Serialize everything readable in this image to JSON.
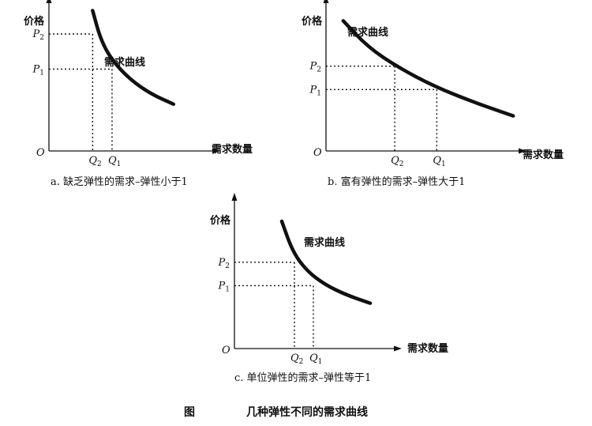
{
  "figure": {
    "label": "图",
    "title": "几种弹性不同的需求曲线"
  },
  "chart_data": [
    {
      "type": "line",
      "panel": "a",
      "caption": "a. 缺乏弹性的需求–弹性小于1",
      "ylabel": "价格",
      "xlabel": "需求数量",
      "origin": "O",
      "curve_label": "需求曲线",
      "ticks": {
        "p_high": "P2",
        "p_low": "P1",
        "q_low": "Q2",
        "q_high": "Q1"
      },
      "xlim": [
        0,
        10
      ],
      "ylim": [
        0,
        10
      ],
      "curve": [
        [
          2.7,
          9.6
        ],
        [
          3.2,
          7.6
        ],
        [
          3.9,
          6.2
        ],
        [
          5.0,
          4.9
        ],
        [
          6.3,
          3.9
        ],
        [
          7.7,
          3.2
        ]
      ],
      "points": [
        {
          "p": "P2",
          "q": "Q2",
          "x": 2.7,
          "y": 8.0
        },
        {
          "p": "P1",
          "q": "Q1",
          "x": 3.9,
          "y": 5.6
        }
      ]
    },
    {
      "type": "line",
      "panel": "b",
      "caption": "b. 富有弹性的需求–弹性大于1",
      "ylabel": "价格",
      "xlabel": "需求数量",
      "origin": "O",
      "curve_label": "需求曲线",
      "ticks": {
        "p_high": "P2",
        "p_low": "P1",
        "q_low": "Q2",
        "q_high": "Q1"
      },
      "xlim": [
        0,
        10
      ],
      "ylim": [
        0,
        10
      ],
      "curve": [
        [
          0.9,
          8.9
        ],
        [
          2.2,
          7.1
        ],
        [
          3.8,
          5.7
        ],
        [
          5.7,
          4.4
        ],
        [
          7.8,
          3.3
        ],
        [
          9.8,
          2.4
        ]
      ],
      "points": [
        {
          "p": "P2",
          "q": "Q2",
          "x": 3.6,
          "y": 5.8
        },
        {
          "p": "P1",
          "q": "Q1",
          "x": 5.8,
          "y": 4.2
        }
      ]
    },
    {
      "type": "line",
      "panel": "c",
      "caption": "c. 单位弹性的需求–弹性等于1",
      "ylabel": "价格",
      "xlabel": "需求数量",
      "origin": "O",
      "curve_label": "需求曲线",
      "ticks": {
        "p_high": "P2",
        "p_low": "P1",
        "q_low": "Q2",
        "q_high": "Q1"
      },
      "xlim": [
        0,
        10
      ],
      "ylim": [
        0,
        10
      ],
      "curve": [
        [
          3.0,
          8.7
        ],
        [
          3.7,
          6.6
        ],
        [
          4.6,
          5.3
        ],
        [
          5.7,
          4.4
        ],
        [
          7.0,
          3.7
        ],
        [
          8.6,
          3.1
        ]
      ],
      "points": [
        {
          "p": "P2",
          "q": "Q2",
          "x": 3.8,
          "y": 5.9
        },
        {
          "p": "P1",
          "q": "Q1",
          "x": 5.0,
          "y": 4.3
        }
      ]
    }
  ]
}
